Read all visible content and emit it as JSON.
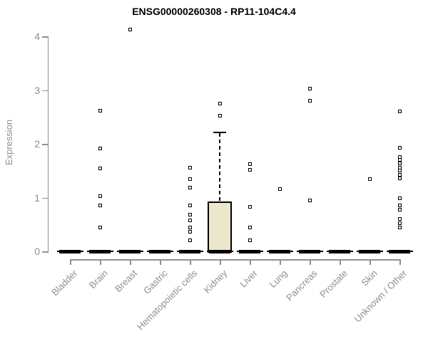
{
  "chart_data": {
    "type": "boxplot",
    "title": "ENSG00000260308 - RP11-104C4.4",
    "ylabel": "Expression",
    "xlabel": "",
    "yticks": [
      0,
      1,
      2,
      3,
      4
    ],
    "ylim": [
      0,
      4.2
    ],
    "grid": false,
    "legend": "none",
    "axis_color": "#8f8f8f",
    "tick_label_color": "#8f8f8f",
    "title_color": "#000000",
    "box_fill_color": "#ece6cd",
    "box_border_color": "#000000",
    "point_color": "#000000",
    "categories": [
      "Bladder",
      "Brain",
      "Breast",
      "Gastric",
      "Hematopoietic cells",
      "Kidney",
      "Liver",
      "Lung",
      "Pancreas",
      "Prostate",
      "Skin",
      "Unknown / Other"
    ],
    "series": [
      {
        "category": "Bladder",
        "median": 0,
        "q1": 0,
        "q3": 0,
        "whisker_low": 0,
        "whisker_high": 0,
        "outliers": []
      },
      {
        "category": "Brain",
        "median": 0,
        "q1": 0,
        "q3": 0,
        "whisker_low": 0,
        "whisker_high": 0,
        "outliers": [
          2.62,
          1.92,
          1.54,
          1.02,
          0.85,
          0.44
        ]
      },
      {
        "category": "Breast",
        "median": 0,
        "q1": 0,
        "q3": 0,
        "whisker_low": 0,
        "whisker_high": 0,
        "outliers": [
          4.12
        ]
      },
      {
        "category": "Gastric",
        "median": 0,
        "q1": 0,
        "q3": 0,
        "whisker_low": 0,
        "whisker_high": 0,
        "outliers": []
      },
      {
        "category": "Hematopoietic cells",
        "median": 0,
        "q1": 0,
        "q3": 0,
        "whisker_low": 0,
        "whisker_high": 0,
        "outliers": [
          1.56,
          1.34,
          1.18,
          0.86,
          0.68,
          0.57,
          0.45,
          0.36,
          0.2
        ]
      },
      {
        "category": "Kidney",
        "median": 0,
        "q1": 0,
        "q3": 0.93,
        "whisker_low": 0,
        "whisker_high": 2.23,
        "outliers": [
          2.75,
          2.52
        ]
      },
      {
        "category": "Liver",
        "median": 0,
        "q1": 0,
        "q3": 0,
        "whisker_low": 0,
        "whisker_high": 0,
        "outliers": [
          1.62,
          1.51,
          0.83,
          0.45,
          0.21
        ]
      },
      {
        "category": "Lung",
        "median": 0,
        "q1": 0,
        "q3": 0,
        "whisker_low": 0,
        "whisker_high": 0,
        "outliers": [
          1.16
        ]
      },
      {
        "category": "Pancreas",
        "median": 0,
        "q1": 0,
        "q3": 0,
        "whisker_low": 0,
        "whisker_high": 0,
        "outliers": [
          3.03,
          2.8,
          0.95
        ]
      },
      {
        "category": "Prostate",
        "median": 0,
        "q1": 0,
        "q3": 0,
        "whisker_low": 0,
        "whisker_high": 0,
        "outliers": []
      },
      {
        "category": "Skin",
        "median": 0,
        "q1": 0,
        "q3": 0,
        "whisker_low": 0,
        "whisker_high": 0,
        "outliers": [
          1.34
        ]
      },
      {
        "category": "Unknown / Other",
        "median": 0,
        "q1": 0,
        "q3": 0,
        "whisker_low": 0,
        "whisker_high": 0,
        "outliers": [
          2.6,
          1.93,
          1.76,
          1.7,
          1.63,
          1.56,
          1.5,
          1.43,
          1.36,
          0.99,
          0.86,
          0.78,
          0.6,
          0.52,
          0.44
        ]
      }
    ]
  }
}
